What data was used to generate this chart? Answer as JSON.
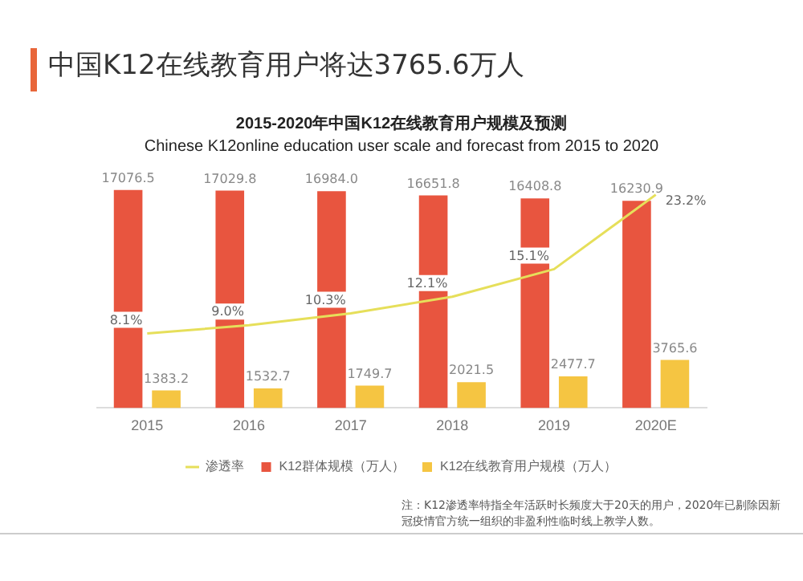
{
  "chart_data": {
    "type": "bar",
    "title": "2015-2020年中国K12在线教育用户规模及预测",
    "subtitle": "Chinese K12online education user scale and forecast from 2015 to 2020",
    "categories": [
      "2015",
      "2016",
      "2017",
      "2018",
      "2019",
      "2020E"
    ],
    "series": [
      {
        "name": "K12群体规模（万人）",
        "color": "#e8553f",
        "values": [
          17076.5,
          17029.8,
          16984.0,
          16651.8,
          16408.8,
          16230.9
        ],
        "value_labels": [
          "17076.5",
          "17029.8",
          "16984.0",
          "16651.8",
          "16408.8",
          "16230.9"
        ]
      },
      {
        "name": "K12在线教育用户规模（万人）",
        "color": "#f5c542",
        "values": [
          1383.2,
          1532.7,
          1749.7,
          2021.5,
          2477.7,
          3765.6
        ],
        "value_labels": [
          "1383.2",
          "1532.7",
          "1749.7",
          "2021.5",
          "2477.7",
          "3765.6"
        ]
      },
      {
        "name": "渗透率",
        "type": "line",
        "axis": "y2",
        "color": "#e6df5a",
        "values": [
          8.1,
          9.0,
          10.3,
          12.1,
          15.1,
          23.2
        ],
        "value_labels": [
          "8.1%",
          "9.0%",
          "10.3%",
          "12.1%",
          "15.1%",
          "23.2%"
        ]
      }
    ],
    "legend": "bottom",
    "marker": "none",
    "grid": false,
    "annotations": [
      "中国K12在线教育用户将达3765.6万人",
      "注：K12渗透率特指全年活跃时长频度大于20天的用户，2020年已剔除因新冠疫情官方统一组织的非盈利性临时线上教学人数。"
    ]
  }
}
